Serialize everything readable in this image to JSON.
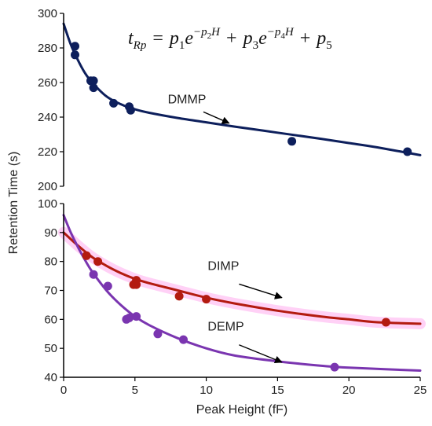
{
  "chart_data": [
    {
      "type": "scatter",
      "panel": "top",
      "ylabel": "Retention Time (s)",
      "xlim": [
        0,
        25
      ],
      "ylim": [
        200,
        300
      ],
      "y_ticks": [
        200,
        220,
        240,
        260,
        280,
        300
      ],
      "grid": false,
      "equation": {
        "lhs": "t",
        "lhs_sub": "Rp",
        "eq": "=",
        "p1": "p",
        "p1_sub": "1",
        "e1": "e",
        "e1_sup": "−p",
        "e1_sup_sub": "2",
        "e1_sup_var": "H",
        "plus1": "+",
        "p3": "p",
        "p3_sub": "3",
        "e2": "e",
        "e2_sup": "−p",
        "e2_sup_sub": "4",
        "e2_sup_var": "H",
        "plus2": "+",
        "p5": "p",
        "p5_sub": "5"
      },
      "series": [
        {
          "name": "DMMP",
          "color": "#0d1f5c",
          "points": [
            [
              0.8,
              281
            ],
            [
              0.8,
              276
            ],
            [
              1.9,
              261
            ],
            [
              2.1,
              261
            ],
            [
              2.1,
              257
            ],
            [
              3.5,
              248
            ],
            [
              4.6,
              246
            ],
            [
              4.7,
              244
            ],
            [
              16,
              226
            ],
            [
              24.1,
              220
            ]
          ],
          "fit": [
            [
              0,
              294
            ],
            [
              0.5,
              282
            ],
            [
              1,
              273
            ],
            [
              1.5,
              265.5
            ],
            [
              2,
              260
            ],
            [
              3,
              252
            ],
            [
              4,
              247.5
            ],
            [
              5,
              244.5
            ],
            [
              6,
              242.5
            ],
            [
              8,
              239.5
            ],
            [
              10,
              237
            ],
            [
              12,
              234.5
            ],
            [
              15,
              231
            ],
            [
              18,
              227.5
            ],
            [
              20,
              225
            ],
            [
              22,
              222.5
            ],
            [
              25,
              218
            ]
          ]
        }
      ],
      "annotations": [
        {
          "text": "DMMP",
          "label_at": [
            7.3,
            248
          ],
          "arrow_from": [
            9.8,
            243
          ],
          "arrow_to": [
            11.6,
            236.5
          ]
        }
      ]
    },
    {
      "type": "scatter",
      "panel": "bottom",
      "xlabel": "Peak Height (fF)",
      "ylabel": "Retention Time (s)",
      "xlim": [
        0,
        25
      ],
      "ylim": [
        40,
        100
      ],
      "x_ticks": [
        0,
        5,
        10,
        15,
        20,
        25
      ],
      "y_ticks": [
        40,
        50,
        60,
        70,
        80,
        90,
        100
      ],
      "grid": false,
      "series": [
        {
          "name": "DIMP",
          "color": "#b31b10",
          "highlight": "#ff00cc",
          "points": [
            [
              1.6,
              82
            ],
            [
              2.4,
              80
            ],
            [
              4.9,
              72
            ],
            [
              5.1,
              72
            ],
            [
              5.1,
              73.5
            ],
            [
              8.1,
              68
            ],
            [
              10,
              67
            ],
            [
              22.6,
              59
            ]
          ],
          "fit": [
            [
              0,
              90
            ],
            [
              1,
              85.5
            ],
            [
              2,
              81.5
            ],
            [
              3,
              78.5
            ],
            [
              4,
              76
            ],
            [
              5,
              74
            ],
            [
              6,
              72.5
            ],
            [
              8,
              70
            ],
            [
              10,
              67.5
            ],
            [
              12,
              65.5
            ],
            [
              15,
              63
            ],
            [
              18,
              61
            ],
            [
              20,
              60
            ],
            [
              22,
              59
            ],
            [
              25,
              58.5
            ]
          ]
        },
        {
          "name": "DEMP",
          "color": "#7a35b0",
          "points": [
            [
              2.1,
              75.5
            ],
            [
              3.1,
              71.5
            ],
            [
              4.4,
              60
            ],
            [
              4.6,
              60.5
            ],
            [
              5.1,
              61
            ],
            [
              6.6,
              55
            ],
            [
              8.4,
              53
            ],
            [
              19,
              43.5
            ]
          ],
          "fit": [
            [
              0,
              96
            ],
            [
              0.5,
              90
            ],
            [
              1,
              85
            ],
            [
              1.5,
              80.5
            ],
            [
              2,
              76.5
            ],
            [
              3,
              70
            ],
            [
              4,
              65
            ],
            [
              5,
              61
            ],
            [
              6,
              58
            ],
            [
              8,
              53.5
            ],
            [
              10,
              50
            ],
            [
              12,
              47.5
            ],
            [
              15,
              45.5
            ],
            [
              18,
              44
            ],
            [
              20,
              43.3
            ],
            [
              25,
              42.3
            ]
          ]
        }
      ],
      "annotations": [
        {
          "text": "DIMP",
          "label_at": [
            10.1,
            77
          ],
          "arrow_from": [
            12.3,
            72.2
          ],
          "arrow_to": [
            15.3,
            67.5
          ]
        },
        {
          "text": "DEMP",
          "label_at": [
            10.1,
            56.2
          ],
          "arrow_from": [
            12.3,
            51.2
          ],
          "arrow_to": [
            15.3,
            45.2
          ]
        }
      ]
    }
  ]
}
